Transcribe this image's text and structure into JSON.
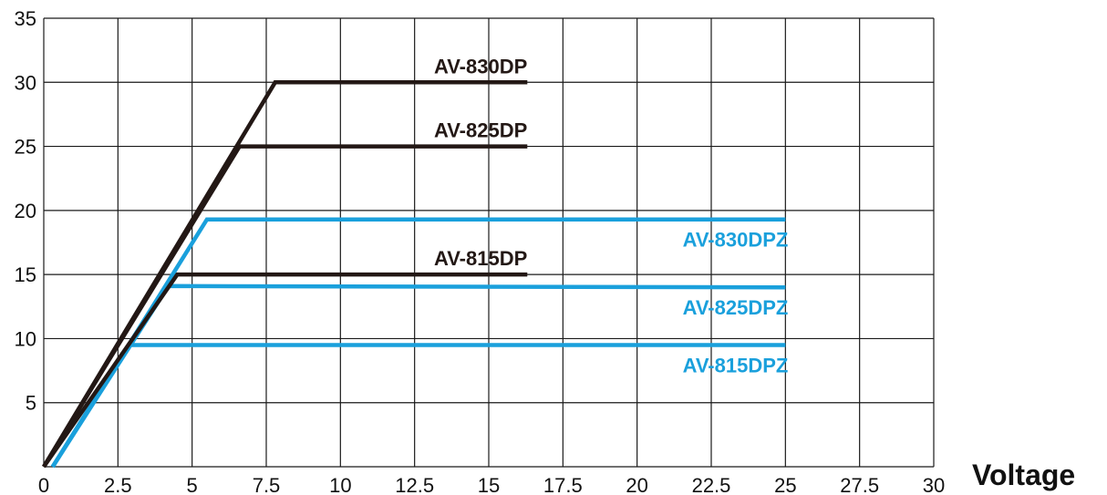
{
  "chart_data": {
    "type": "line",
    "title": "",
    "xlabel": "Voltage",
    "ylabel": "",
    "xlim": [
      0,
      30
    ],
    "ylim": [
      0,
      35
    ],
    "grid": true,
    "x_ticks": [
      "0",
      "2.5",
      "5",
      "7.5",
      "10",
      "12.5",
      "15",
      "17.5",
      "20",
      "22.5",
      "25",
      "27.5",
      "30"
    ],
    "y_ticks": [
      "35",
      "30",
      "25",
      "20",
      "15",
      "10",
      "5"
    ],
    "series": [
      {
        "name": "AV-830DP",
        "color": "#231815",
        "points": [
          [
            0,
            0
          ],
          [
            7.8,
            30
          ],
          [
            16.3,
            30
          ]
        ]
      },
      {
        "name": "AV-825DP",
        "color": "#231815",
        "points": [
          [
            0,
            0
          ],
          [
            6.6,
            25
          ],
          [
            16.3,
            25
          ]
        ]
      },
      {
        "name": "AV-815DP",
        "color": "#231815",
        "points": [
          [
            0,
            0
          ],
          [
            4.5,
            15
          ],
          [
            16.3,
            15
          ]
        ]
      },
      {
        "name": "AV-830DPZ",
        "color": "#1aa0dc",
        "points": [
          [
            0.3,
            0
          ],
          [
            5.5,
            19.3
          ],
          [
            25,
            19.3
          ]
        ]
      },
      {
        "name": "AV-825DPZ",
        "color": "#1aa0dc",
        "points": [
          [
            0.3,
            0
          ],
          [
            4.2,
            14.1
          ],
          [
            25,
            14
          ]
        ]
      },
      {
        "name": "AV-815DPZ",
        "color": "#1aa0dc",
        "points": [
          [
            0.3,
            0
          ],
          [
            2.9,
            9.5
          ],
          [
            25,
            9.5
          ]
        ]
      }
    ]
  }
}
